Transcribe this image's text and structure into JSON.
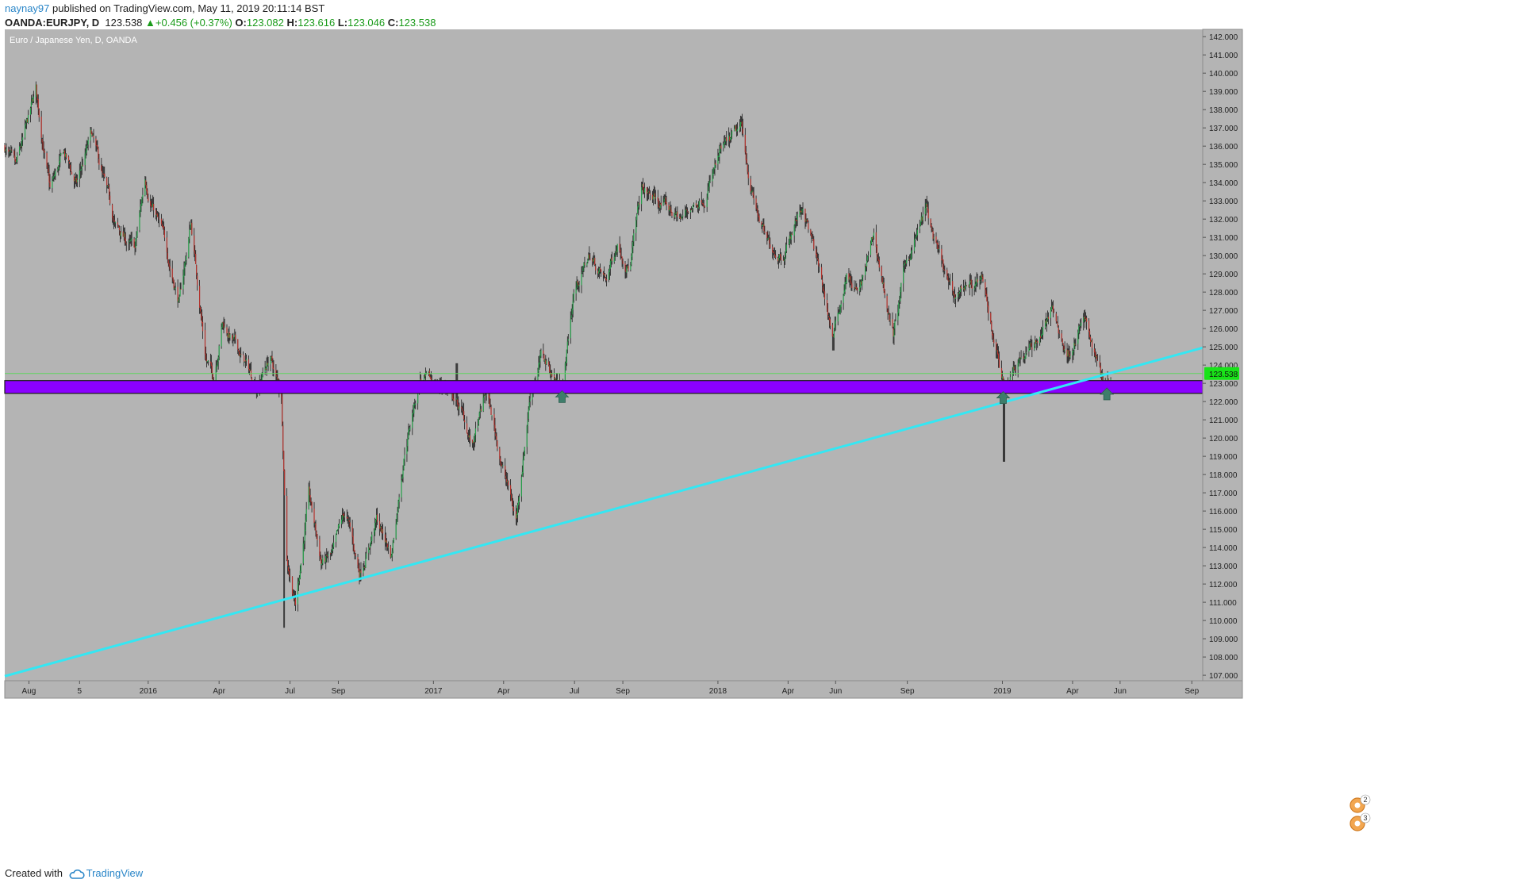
{
  "header": {
    "author": "naynay97",
    "published_text": "published on TradingView.com, May 11, 2019 20:11:14 BST",
    "symbol": "OANDA:EURJPY, D",
    "last": "123.538",
    "change": "+0.456 (+0.37%)",
    "ohlc": [
      {
        "k": "O:",
        "v": "123.082"
      },
      {
        "k": "H:",
        "v": "123.616"
      },
      {
        "k": "L:",
        "v": "123.046"
      },
      {
        "k": "C:",
        "v": "123.538"
      }
    ]
  },
  "footer": {
    "created_with": "Created with",
    "brand": "TradingView"
  },
  "colors": {
    "plot_bg": "#b4b4b4",
    "up": "#26a04a",
    "down": "#b3312b",
    "trendline": "#34e7f3",
    "zone_fill": "#8b00ff",
    "zone_border": "#1a1a1a",
    "price_line": "#5fd35f",
    "price_label_bg": "#18e318",
    "marker": "#3e7d6b"
  },
  "chart_data": {
    "type": "candlestick",
    "title": "Euro / Japanese Yen, D, OANDA",
    "x_tick_labels": [
      "Aug",
      "5",
      "2016",
      "Apr",
      "Jul",
      "Sep",
      "2017",
      "Apr",
      "Jul",
      "Sep",
      "2018",
      "Apr",
      "Jun",
      "Sep",
      "2019",
      "Apr",
      "Jun",
      "Sep"
    ],
    "x_tick_dates": [
      "2015-08-01",
      "2015-10-05",
      "2016-01-01",
      "2016-04-01",
      "2016-07-01",
      "2016-09-01",
      "2017-01-01",
      "2017-04-01",
      "2017-07-01",
      "2017-09-01",
      "2018-01-01",
      "2018-04-01",
      "2018-06-01",
      "2018-09-01",
      "2019-01-01",
      "2019-04-01",
      "2019-06-01",
      "2019-09-01"
    ],
    "x_range": [
      "2015-07-01",
      "2019-09-15"
    ],
    "ylim": [
      106.7,
      142.4
    ],
    "y_ticks": [
      "107.000",
      "108.000",
      "109.000",
      "110.000",
      "111.000",
      "112.000",
      "113.000",
      "114.000",
      "115.000",
      "116.000",
      "117.000",
      "118.000",
      "119.000",
      "120.000",
      "121.000",
      "122.000",
      "123.000",
      "124.000",
      "125.000",
      "126.000",
      "127.000",
      "128.000",
      "129.000",
      "130.000",
      "131.000",
      "132.000",
      "133.000",
      "134.000",
      "135.000",
      "136.000",
      "137.000",
      "138.000",
      "139.000",
      "140.000",
      "141.000",
      "142.000"
    ],
    "last_price_label": "123.538",
    "last_price": 123.538,
    "support_zone": [
      122.45,
      123.15
    ],
    "trendline": [
      {
        "date": "2015-07-01",
        "price": 106.95
      },
      {
        "date": "2019-09-15",
        "price": 124.95
      }
    ],
    "bounce_markers": [
      {
        "date": "2017-06-15",
        "price": 122.25
      },
      {
        "date": "2019-01-02",
        "price": 122.2
      },
      {
        "date": "2019-05-15",
        "price": 122.4
      }
    ],
    "event_badges": [
      "2",
      "3"
    ],
    "price_path": [
      {
        "date": "2015-07-01",
        "price": 136.0
      },
      {
        "date": "2015-07-15",
        "price": 134.5
      },
      {
        "date": "2015-08-10",
        "price": 138.9
      },
      {
        "date": "2015-08-28",
        "price": 133.5
      },
      {
        "date": "2015-09-15",
        "price": 135.5
      },
      {
        "date": "2015-10-01",
        "price": 133.8
      },
      {
        "date": "2015-10-20",
        "price": 136.5
      },
      {
        "date": "2015-11-20",
        "price": 131.5
      },
      {
        "date": "2015-12-15",
        "price": 130.2
      },
      {
        "date": "2015-12-28",
        "price": 134.2
      },
      {
        "date": "2016-01-20",
        "price": 131.0
      },
      {
        "date": "2016-02-10",
        "price": 127.5
      },
      {
        "date": "2016-02-25",
        "price": 131.8
      },
      {
        "date": "2016-03-15",
        "price": 124.5
      },
      {
        "date": "2016-03-25",
        "price": 123.3
      },
      {
        "date": "2016-04-05",
        "price": 126.5
      },
      {
        "date": "2016-04-20",
        "price": 125.2
      },
      {
        "date": "2016-05-05",
        "price": 124.0
      },
      {
        "date": "2016-05-20",
        "price": 122.8
      },
      {
        "date": "2016-06-05",
        "price": 124.5
      },
      {
        "date": "2016-06-20",
        "price": 122.2
      },
      {
        "date": "2016-06-27",
        "price": 113.6
      },
      {
        "date": "2016-07-08",
        "price": 111.0
      },
      {
        "date": "2016-07-25",
        "price": 116.8
      },
      {
        "date": "2016-08-10",
        "price": 113.2
      },
      {
        "date": "2016-08-25",
        "price": 113.5
      },
      {
        "date": "2016-09-10",
        "price": 115.8
      },
      {
        "date": "2016-09-28",
        "price": 112.6
      },
      {
        "date": "2016-10-20",
        "price": 115.5
      },
      {
        "date": "2016-11-08",
        "price": 113.6
      },
      {
        "date": "2016-11-25",
        "price": 119.5
      },
      {
        "date": "2016-12-15",
        "price": 123.3
      },
      {
        "date": "2016-12-30",
        "price": 122.8
      },
      {
        "date": "2017-01-15",
        "price": 123.0
      },
      {
        "date": "2017-02-05",
        "price": 121.5
      },
      {
        "date": "2017-02-20",
        "price": 119.5
      },
      {
        "date": "2017-03-10",
        "price": 122.5
      },
      {
        "date": "2017-03-25",
        "price": 119.5
      },
      {
        "date": "2017-04-17",
        "price": 115.5
      },
      {
        "date": "2017-05-05",
        "price": 122.5
      },
      {
        "date": "2017-05-20",
        "price": 124.5
      },
      {
        "date": "2017-06-15",
        "price": 122.6
      },
      {
        "date": "2017-06-30",
        "price": 128.0
      },
      {
        "date": "2017-07-20",
        "price": 130.0
      },
      {
        "date": "2017-08-10",
        "price": 128.5
      },
      {
        "date": "2017-08-25",
        "price": 130.8
      },
      {
        "date": "2017-09-10",
        "price": 129.5
      },
      {
        "date": "2017-09-25",
        "price": 133.5
      },
      {
        "date": "2017-10-20",
        "price": 132.8
      },
      {
        "date": "2017-11-15",
        "price": 132.0
      },
      {
        "date": "2017-12-15",
        "price": 133.5
      },
      {
        "date": "2018-01-05",
        "price": 135.5
      },
      {
        "date": "2018-01-31",
        "price": 136.8
      },
      {
        "date": "2018-02-15",
        "price": 133.2
      },
      {
        "date": "2018-03-05",
        "price": 130.5
      },
      {
        "date": "2018-03-25",
        "price": 130.2
      },
      {
        "date": "2018-04-20",
        "price": 132.8
      },
      {
        "date": "2018-05-05",
        "price": 130.2
      },
      {
        "date": "2018-05-29",
        "price": 125.5
      },
      {
        "date": "2018-06-15",
        "price": 129.0
      },
      {
        "date": "2018-07-01",
        "price": 127.8
      },
      {
        "date": "2018-07-20",
        "price": 131.0
      },
      {
        "date": "2018-08-14",
        "price": 125.6
      },
      {
        "date": "2018-08-30",
        "price": 129.5
      },
      {
        "date": "2018-09-25",
        "price": 132.5
      },
      {
        "date": "2018-10-10",
        "price": 130.0
      },
      {
        "date": "2018-10-30",
        "price": 127.5
      },
      {
        "date": "2018-11-15",
        "price": 128.5
      },
      {
        "date": "2018-12-05",
        "price": 128.5
      },
      {
        "date": "2018-12-20",
        "price": 125.8
      },
      {
        "date": "2019-01-03",
        "price": 122.8
      },
      {
        "date": "2019-01-20",
        "price": 124.5
      },
      {
        "date": "2019-02-10",
        "price": 125.0
      },
      {
        "date": "2019-03-05",
        "price": 127.0
      },
      {
        "date": "2019-03-25",
        "price": 124.5
      },
      {
        "date": "2019-04-15",
        "price": 126.5
      },
      {
        "date": "2019-05-01",
        "price": 124.5
      },
      {
        "date": "2019-05-13",
        "price": 123.0
      },
      {
        "date": "2019-05-20",
        "price": 123.538
      }
    ],
    "wick_extremes": [
      {
        "date": "2015-08-10",
        "price": 139.1,
        "dir": "high"
      },
      {
        "date": "2016-06-24",
        "price": 109.6,
        "dir": "low"
      },
      {
        "date": "2017-01-31",
        "price": 124.1,
        "dir": "high"
      },
      {
        "date": "2018-02-02",
        "price": 137.5,
        "dir": "high"
      },
      {
        "date": "2018-05-29",
        "price": 124.8,
        "dir": "low"
      },
      {
        "date": "2018-09-25",
        "price": 133.1,
        "dir": "high"
      },
      {
        "date": "2019-01-03",
        "price": 118.7,
        "dir": "low"
      }
    ]
  }
}
